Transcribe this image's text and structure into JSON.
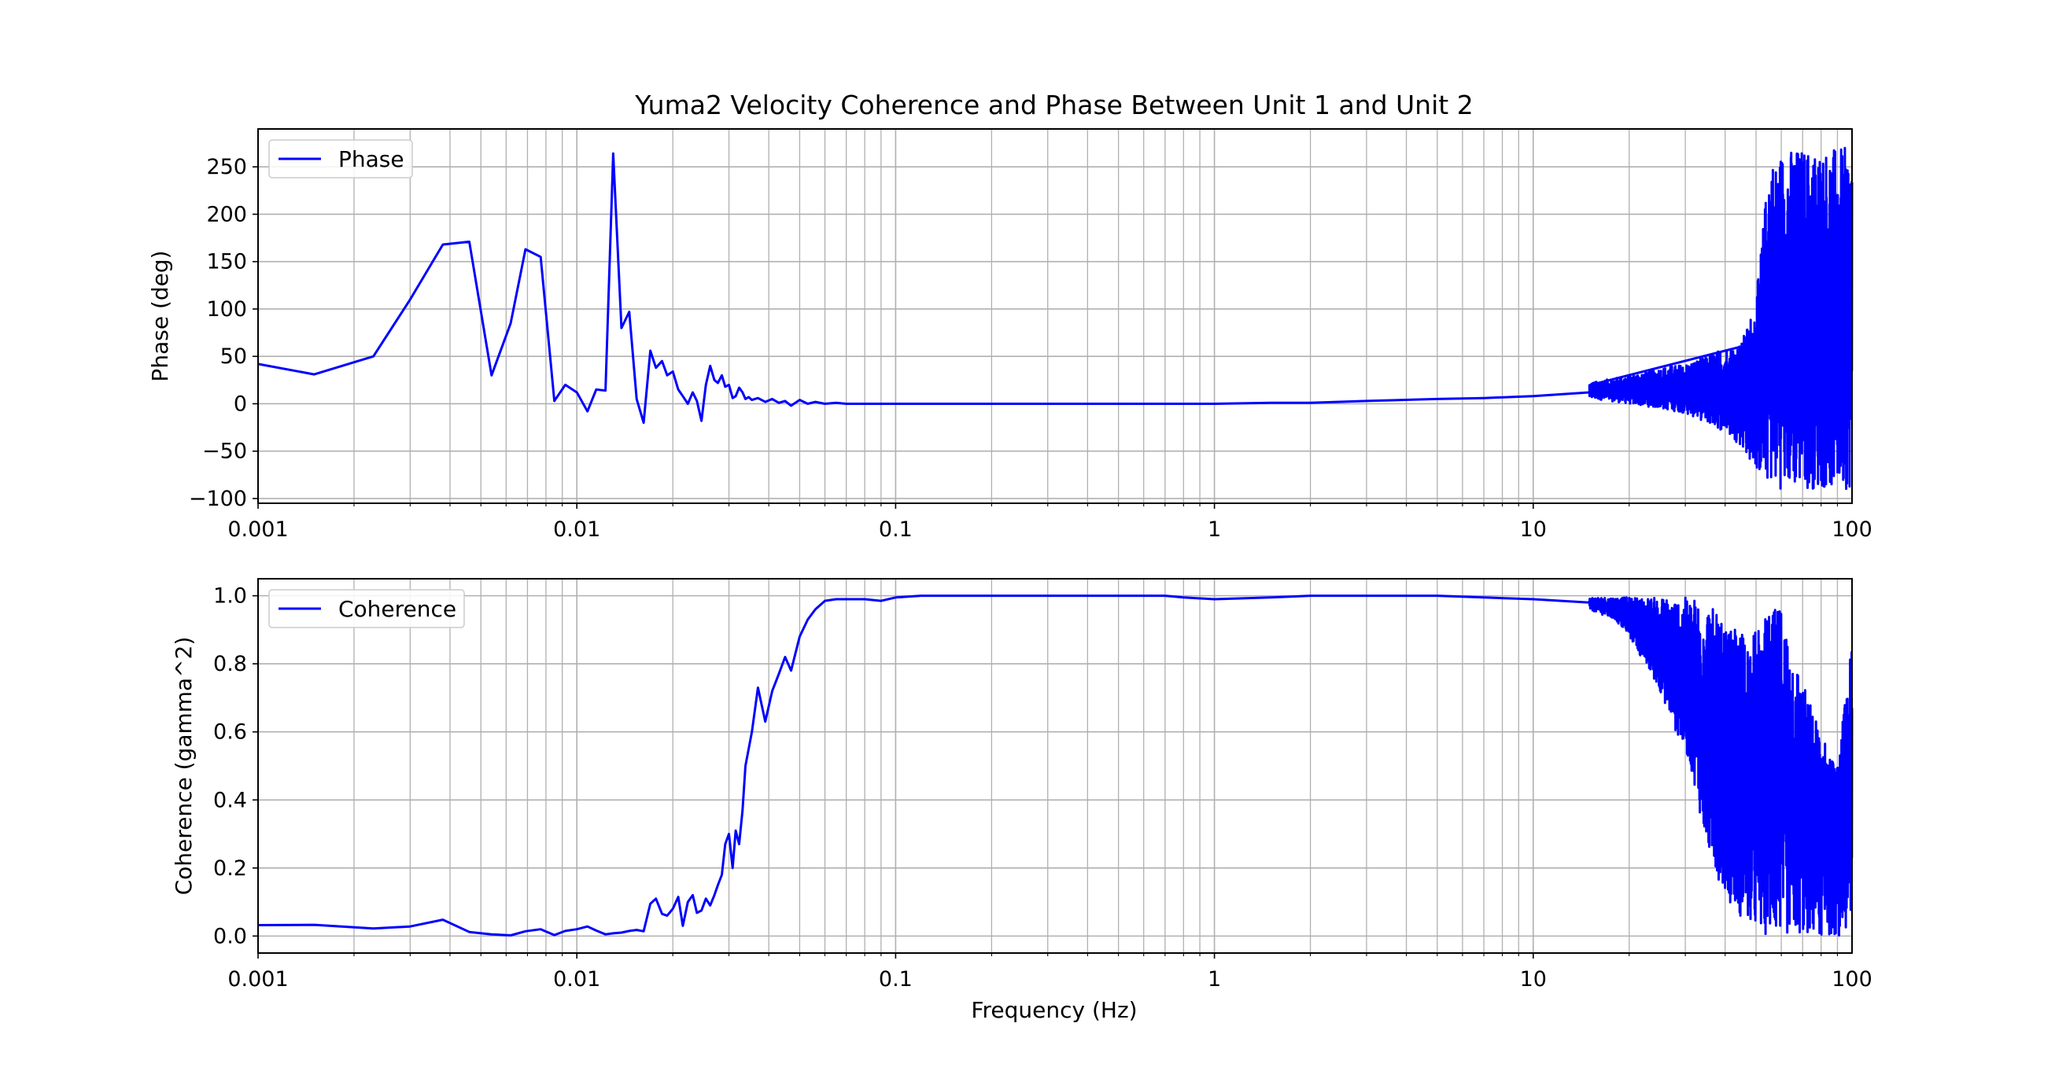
{
  "figure": {
    "title": "Yuma2 Velocity Coherence and Phase Between Unit 1 and Unit 2",
    "x_tick_labels": [
      "0.001",
      "0.01",
      "0.1",
      "1",
      "10",
      "100"
    ]
  },
  "chart_data": [
    {
      "type": "line",
      "title": "Yuma2 Velocity Coherence and Phase Between Unit 1 and Unit 2",
      "xlabel": "",
      "ylabel": "Phase (deg)",
      "xscale": "log",
      "xlim": [
        0.001,
        100
      ],
      "ylim": [
        -105,
        290
      ],
      "x_ticks": [
        0.001,
        0.01,
        0.1,
        1,
        10,
        100
      ],
      "x_tick_labels": [
        "0.001",
        "0.01",
        "0.1",
        "1",
        "10",
        "100"
      ],
      "y_ticks": [
        -100,
        -50,
        0,
        50,
        100,
        150,
        200,
        250
      ],
      "y_tick_labels": [
        "−100",
        "−50",
        "0",
        "50",
        "100",
        "150",
        "200",
        "250"
      ],
      "grid": true,
      "legend": "upper-left",
      "color": "#0000ff",
      "series": [
        {
          "name": "Phase",
          "x": [
            0.001,
            0.0015,
            0.0023,
            0.003,
            0.0038,
            0.0046,
            0.0054,
            0.0062,
            0.0069,
            0.0077,
            0.0085,
            0.0092,
            0.01,
            0.0108,
            0.0115,
            0.0123,
            0.013,
            0.0138,
            0.0146,
            0.0154,
            0.0162,
            0.017,
            0.0177,
            0.0185,
            0.0192,
            0.02,
            0.0208,
            0.0215,
            0.0223,
            0.0231,
            0.0238,
            0.0246,
            0.0254,
            0.0262,
            0.027,
            0.0277,
            0.0285,
            0.0292,
            0.03,
            0.0308,
            0.0315,
            0.0323,
            0.0331,
            0.0338,
            0.0346,
            0.0354,
            0.037,
            0.039,
            0.041,
            0.043,
            0.045,
            0.047,
            0.05,
            0.053,
            0.056,
            0.06,
            0.065,
            0.07,
            0.08,
            0.09,
            0.1,
            0.15,
            0.2,
            0.3,
            0.5,
            0.7,
            1,
            1.5,
            2,
            3,
            5,
            7,
            10,
            15,
            20,
            30,
            40,
            50,
            55,
            60,
            70,
            80,
            90,
            100
          ],
          "y": [
            42,
            31,
            50,
            110,
            168,
            171,
            30,
            85,
            163,
            155,
            3,
            20,
            12,
            -8,
            15,
            14,
            264,
            80,
            97,
            5,
            -20,
            56,
            38,
            45,
            30,
            34,
            15,
            8,
            0,
            12,
            3,
            -18,
            20,
            40,
            25,
            22,
            30,
            18,
            20,
            6,
            8,
            17,
            12,
            5,
            7,
            4,
            6,
            2,
            5,
            1,
            3,
            -2,
            4,
            0,
            2,
            0,
            1,
            0,
            0,
            0,
            0,
            0,
            0,
            0,
            0,
            0,
            0,
            1,
            1,
            3,
            5,
            6,
            8,
            12,
            18,
            26,
            32,
            45,
            60,
            90,
            100,
            95,
            90,
            90
          ],
          "envelope_x": [
            15,
            20,
            25,
            30,
            35,
            40,
            45,
            50,
            53,
            55,
            58,
            60,
            65,
            70,
            80,
            90,
            100
          ],
          "envelope_low": [
            6,
            0,
            -5,
            -10,
            -20,
            -30,
            -45,
            -70,
            -80,
            -85,
            -88,
            -90,
            -90,
            -90,
            -90,
            -90,
            -90
          ],
          "envelope_high": [
            22,
            30,
            38,
            42,
            50,
            60,
            65,
            110,
            200,
            265,
            255,
            268,
            270,
            270,
            270,
            270,
            270
          ]
        }
      ]
    },
    {
      "type": "line",
      "title": "",
      "xlabel": "Frequency (Hz)",
      "ylabel": "Coherence (gamma^2)",
      "xscale": "log",
      "xlim": [
        0.001,
        100
      ],
      "ylim": [
        -0.05,
        1.05
      ],
      "x_ticks": [
        0.001,
        0.01,
        0.1,
        1,
        10,
        100
      ],
      "x_tick_labels": [
        "0.001",
        "0.01",
        "0.1",
        "1",
        "10",
        "100"
      ],
      "y_ticks": [
        0.0,
        0.2,
        0.4,
        0.6,
        0.8,
        1.0
      ],
      "y_tick_labels": [
        "0.0",
        "0.2",
        "0.4",
        "0.6",
        "0.8",
        "1.0"
      ],
      "grid": true,
      "legend": "upper-left",
      "color": "#0000ff",
      "series": [
        {
          "name": "Coherence",
          "x": [
            0.001,
            0.0015,
            0.0023,
            0.003,
            0.0038,
            0.0046,
            0.0054,
            0.0062,
            0.0069,
            0.0077,
            0.0085,
            0.0092,
            0.01,
            0.0108,
            0.0115,
            0.0123,
            0.013,
            0.0138,
            0.0146,
            0.0154,
            0.0162,
            0.017,
            0.0177,
            0.0185,
            0.0192,
            0.02,
            0.0208,
            0.0215,
            0.0223,
            0.0231,
            0.0238,
            0.0246,
            0.0254,
            0.0262,
            0.027,
            0.0277,
            0.0285,
            0.0292,
            0.03,
            0.0308,
            0.0315,
            0.0323,
            0.0331,
            0.0338,
            0.0346,
            0.0354,
            0.037,
            0.039,
            0.041,
            0.043,
            0.045,
            0.047,
            0.05,
            0.053,
            0.056,
            0.06,
            0.065,
            0.07,
            0.08,
            0.09,
            0.1,
            0.12,
            0.15,
            0.2,
            0.3,
            0.5,
            0.7,
            0.8,
            1,
            1.5,
            2,
            3,
            5,
            7,
            10,
            15
          ],
          "y": [
            0.032,
            0.033,
            0.022,
            0.028,
            0.048,
            0.012,
            0.005,
            0.002,
            0.014,
            0.02,
            0.003,
            0.015,
            0.02,
            0.028,
            0.016,
            0.005,
            0.008,
            0.01,
            0.015,
            0.018,
            0.014,
            0.095,
            0.11,
            0.065,
            0.06,
            0.08,
            0.115,
            0.03,
            0.1,
            0.12,
            0.068,
            0.075,
            0.11,
            0.09,
            0.12,
            0.15,
            0.18,
            0.27,
            0.3,
            0.2,
            0.31,
            0.27,
            0.37,
            0.5,
            0.55,
            0.6,
            0.73,
            0.63,
            0.72,
            0.77,
            0.82,
            0.78,
            0.88,
            0.93,
            0.96,
            0.985,
            0.99,
            0.99,
            0.99,
            0.985,
            0.995,
            1.0,
            1.0,
            1.0,
            1.0,
            1.0,
            1.0,
            0.995,
            0.99,
            0.995,
            1.0,
            1.0,
            1.0,
            0.995,
            0.99,
            0.98
          ],
          "envelope_x": [
            15,
            18,
            20,
            25,
            28,
            30,
            32,
            35,
            40,
            45,
            50,
            55,
            60,
            70,
            80,
            90,
            100
          ],
          "envelope_low": [
            0.96,
            0.93,
            0.88,
            0.72,
            0.6,
            0.55,
            0.45,
            0.25,
            0.12,
            0.05,
            0.01,
            0.0,
            0.0,
            0.0,
            0.0,
            0.0,
            0.0
          ],
          "envelope_high": [
            0.995,
            0.995,
            0.995,
            0.995,
            0.995,
            0.995,
            0.995,
            0.995,
            0.9,
            0.9,
            0.9,
            0.95,
            0.97,
            0.75,
            0.6,
            0.5,
            0.87
          ]
        }
      ]
    }
  ]
}
